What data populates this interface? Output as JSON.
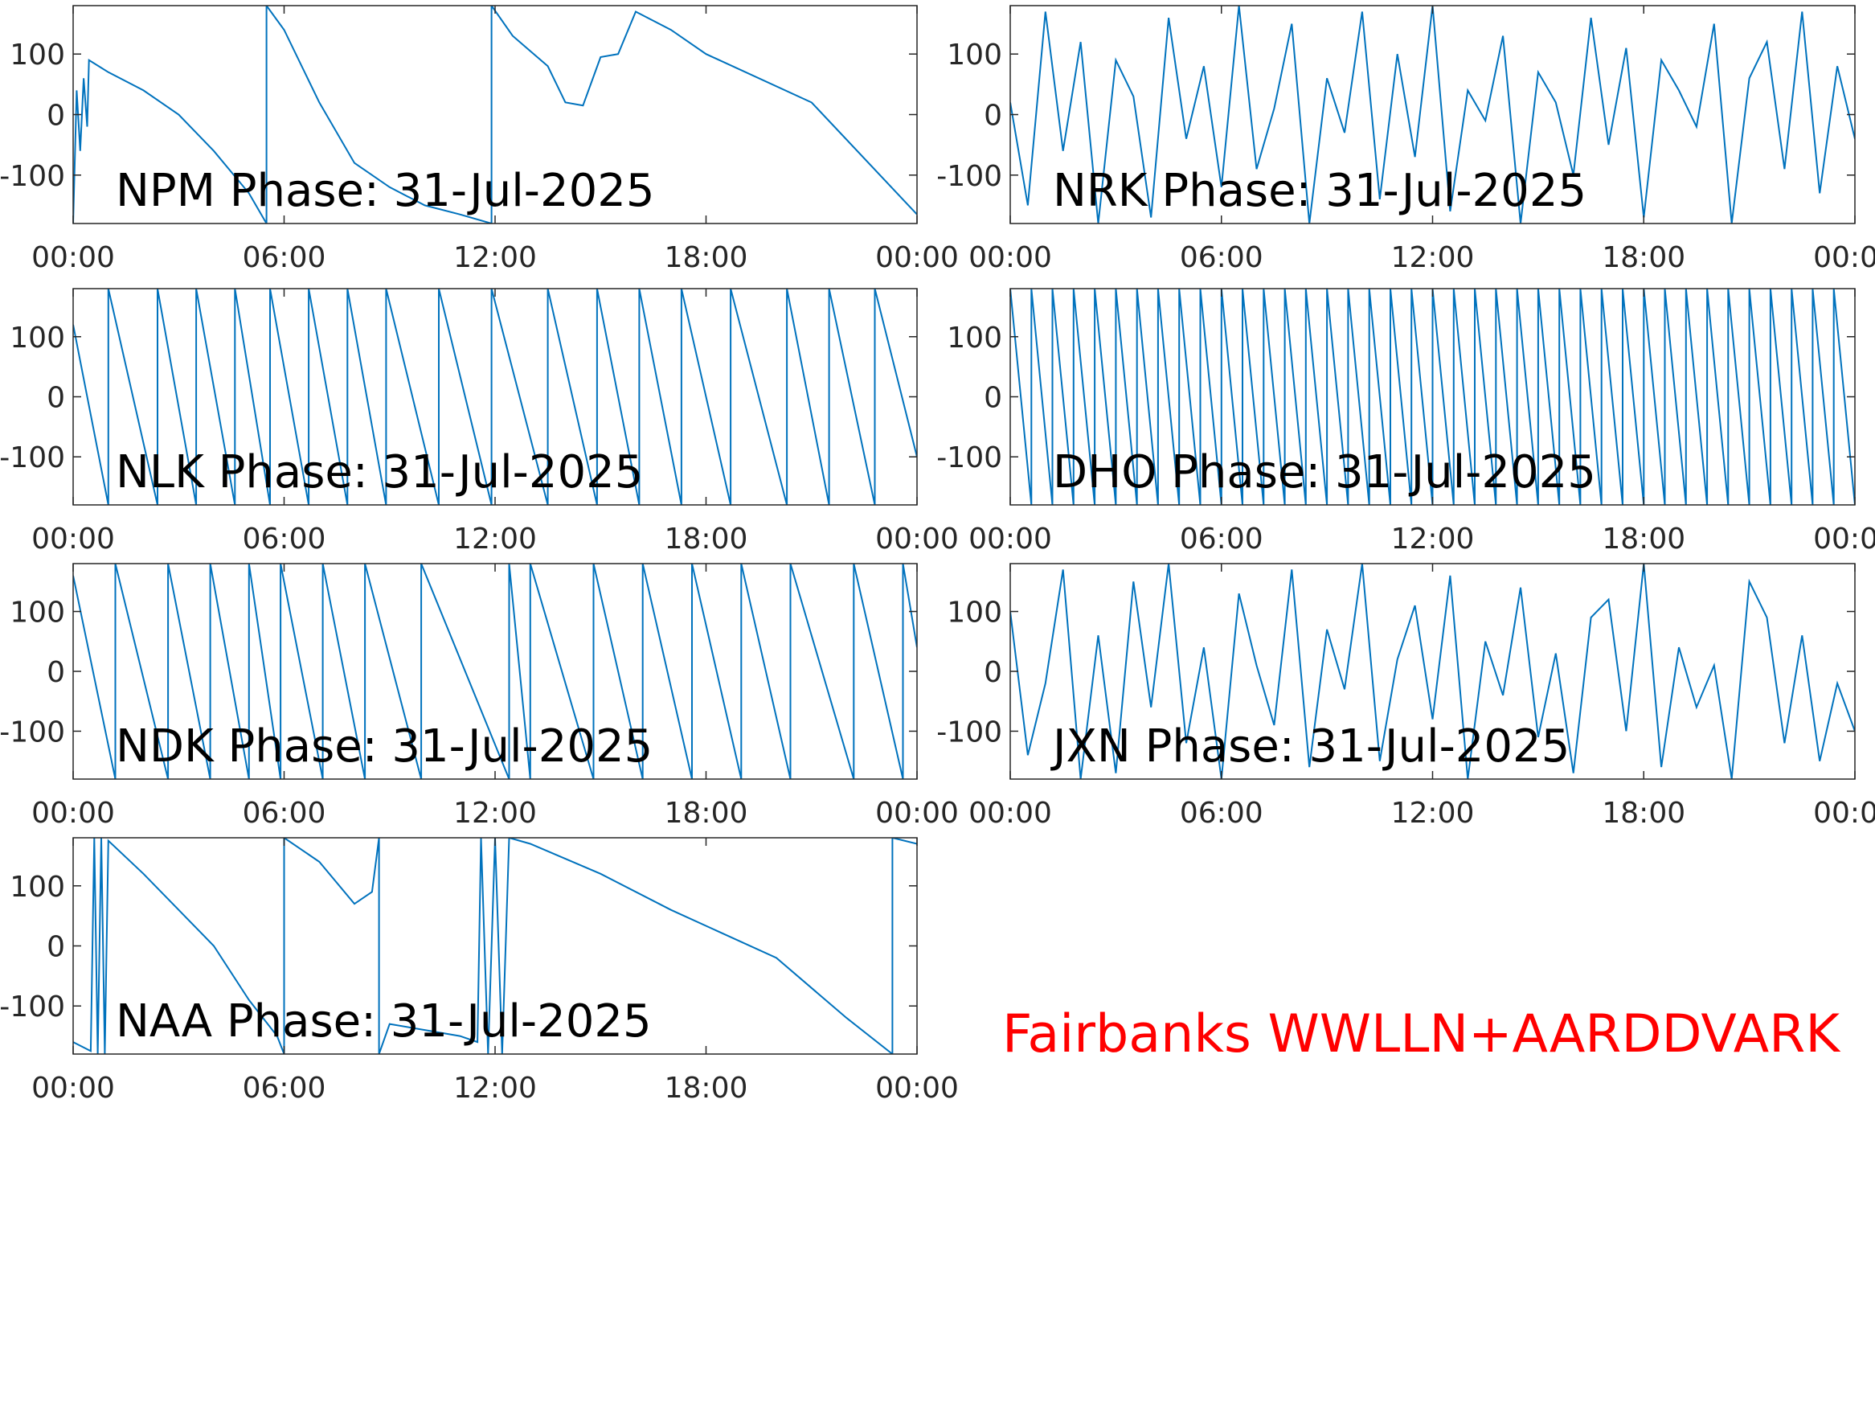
{
  "chart_data": [
    {
      "type": "line",
      "annotation": "NPM Phase: 31-Jul-2025",
      "color": "#0072bd",
      "x": [
        0,
        0.1,
        0.2,
        0.3,
        0.4,
        0.45,
        1,
        2,
        3,
        4,
        5,
        5.5,
        5.5,
        6,
        7,
        8,
        9,
        10,
        11,
        11.9,
        11.9,
        12.5,
        13,
        13.5,
        14,
        14.5,
        15,
        15.5,
        16,
        17,
        18,
        21,
        24
      ],
      "values": [
        -180,
        40,
        -60,
        60,
        -20,
        90,
        70,
        40,
        0,
        -60,
        -130,
        -180,
        180,
        140,
        20,
        -80,
        -120,
        -150,
        -165,
        -180,
        180,
        130,
        105,
        80,
        20,
        15,
        95,
        100,
        170,
        140,
        100,
        20,
        -165
      ],
      "xlim": [
        0,
        24
      ],
      "xticks": [
        {
          "value": 0,
          "label": "00:00"
        },
        {
          "value": 6,
          "label": "06:00"
        },
        {
          "value": 12,
          "label": "12:00"
        },
        {
          "value": 18,
          "label": "18:00"
        },
        {
          "value": 24,
          "label": "00:00"
        }
      ],
      "ylim": [
        -180,
        180
      ],
      "yticks": [
        -100,
        0,
        100
      ]
    },
    {
      "type": "line",
      "annotation": "NRK Phase: 31-Jul-2025",
      "color": "#0072bd",
      "x": [
        0,
        0.5,
        1,
        1.5,
        2,
        2.5,
        3,
        3.5,
        4,
        4.5,
        5,
        5.5,
        6,
        6.5,
        7,
        7.5,
        8,
        8.5,
        9,
        9.5,
        10,
        10.5,
        11,
        11.5,
        12,
        12.5,
        13,
        13.5,
        14,
        14.5,
        15,
        15.5,
        16,
        16.5,
        17,
        17.5,
        18,
        18.5,
        19,
        19.5,
        20,
        20.5,
        21,
        21.5,
        22,
        22.5,
        23,
        23.5,
        24
      ],
      "values": [
        20,
        -150,
        170,
        -60,
        120,
        -180,
        90,
        30,
        -170,
        160,
        -40,
        80,
        -120,
        180,
        -90,
        10,
        150,
        -180,
        60,
        -30,
        170,
        -140,
        100,
        -70,
        180,
        -160,
        40,
        -10,
        130,
        -180,
        70,
        20,
        -100,
        160,
        -50,
        110,
        -170,
        90,
        40,
        -20,
        150,
        -180,
        60,
        120,
        -90,
        170,
        -130,
        80,
        -40
      ],
      "xlim": [
        0,
        24
      ],
      "xticks": [
        {
          "value": 0,
          "label": "00:00"
        },
        {
          "value": 6,
          "label": "06:00"
        },
        {
          "value": 12,
          "label": "12:00"
        },
        {
          "value": 18,
          "label": "18:00"
        },
        {
          "value": 24,
          "label": "00:00"
        }
      ],
      "ylim": [
        -180,
        180
      ],
      "yticks": [
        -100,
        0,
        100
      ]
    },
    {
      "type": "line",
      "annotation": "NLK Phase: 31-Jul-2025",
      "color": "#0072bd",
      "x": [
        0,
        1.0,
        1.0,
        2.4,
        2.4,
        3.5,
        3.5,
        4.6,
        4.6,
        5.6,
        5.6,
        6.7,
        6.7,
        7.8,
        7.8,
        8.9,
        8.9,
        10.4,
        10.4,
        11.9,
        11.9,
        13.5,
        13.5,
        14.9,
        14.9,
        16.1,
        16.1,
        17.3,
        17.3,
        18.7,
        18.7,
        20.3,
        20.3,
        21.5,
        21.5,
        22.8,
        22.8,
        24
      ],
      "values": [
        120,
        -180,
        180,
        -180,
        180,
        -180,
        180,
        -180,
        180,
        -180,
        180,
        -180,
        180,
        -180,
        180,
        -180,
        180,
        -180,
        180,
        -180,
        180,
        -180,
        180,
        -180,
        180,
        -180,
        180,
        -180,
        180,
        -180,
        180,
        -180,
        180,
        -180,
        180,
        -180,
        180,
        -100
      ],
      "xlim": [
        0,
        24
      ],
      "xticks": [
        {
          "value": 0,
          "label": "00:00"
        },
        {
          "value": 6,
          "label": "06:00"
        },
        {
          "value": 12,
          "label": "12:00"
        },
        {
          "value": 18,
          "label": "18:00"
        },
        {
          "value": 24,
          "label": "00:00"
        }
      ],
      "ylim": [
        -180,
        180
      ],
      "yticks": [
        -100,
        0,
        100
      ]
    },
    {
      "type": "line",
      "annotation": "DHO Phase: 31-Jul-2025",
      "color": "#0072bd",
      "x": [
        0,
        0.6,
        0.6,
        1.2,
        1.2,
        1.8,
        1.8,
        2.4,
        2.4,
        3,
        3,
        3.6,
        3.6,
        4.2,
        4.2,
        4.8,
        4.8,
        5.4,
        5.4,
        6,
        6,
        6.6,
        6.6,
        7.2,
        7.2,
        7.8,
        7.8,
        8.4,
        8.4,
        9,
        9,
        9.6,
        9.6,
        10.2,
        10.2,
        10.8,
        10.8,
        11.4,
        11.4,
        12,
        12,
        12.6,
        12.6,
        13.2,
        13.2,
        13.8,
        13.8,
        14.4,
        14.4,
        15,
        15,
        15.6,
        15.6,
        16.2,
        16.2,
        16.8,
        16.8,
        17.4,
        17.4,
        18,
        18,
        18.6,
        18.6,
        19.2,
        19.2,
        19.8,
        19.8,
        20.4,
        20.4,
        21,
        21,
        21.6,
        21.6,
        22.2,
        22.2,
        22.8,
        22.8,
        23.4,
        23.4,
        24
      ],
      "values": [
        180,
        -180,
        180,
        -180,
        180,
        -180,
        180,
        -180,
        180,
        -180,
        180,
        -180,
        180,
        -180,
        180,
        -180,
        180,
        -180,
        180,
        -180,
        180,
        -180,
        180,
        -180,
        180,
        -180,
        180,
        -180,
        180,
        -180,
        180,
        -180,
        180,
        -180,
        180,
        -180,
        180,
        -180,
        180,
        -180,
        180,
        -180,
        180,
        -180,
        180,
        -180,
        180,
        -180,
        180,
        -180,
        180,
        -180,
        180,
        -180,
        180,
        -180,
        180,
        -180,
        180,
        -180,
        180,
        -180,
        180,
        -180,
        180,
        -180,
        180,
        -180,
        180,
        -180,
        180,
        -180,
        180,
        -180,
        180,
        -180,
        180,
        -180,
        180,
        -180
      ],
      "xlim": [
        0,
        24
      ],
      "xticks": [
        {
          "value": 0,
          "label": "00:00"
        },
        {
          "value": 6,
          "label": "06:00"
        },
        {
          "value": 12,
          "label": "12:00"
        },
        {
          "value": 18,
          "label": "18:00"
        },
        {
          "value": 24,
          "label": "00:00"
        }
      ],
      "ylim": [
        -180,
        180
      ],
      "yticks": [
        -100,
        0,
        100
      ]
    },
    {
      "type": "line",
      "annotation": "NDK Phase: 31-Jul-2025",
      "color": "#0072bd",
      "x": [
        0,
        1.2,
        1.2,
        2.7,
        2.7,
        3.9,
        3.9,
        5.0,
        5.0,
        5.9,
        5.9,
        7.1,
        7.1,
        8.3,
        8.3,
        9.9,
        9.9,
        12.4,
        12.4,
        13.0,
        13.0,
        14.8,
        14.8,
        16.2,
        16.2,
        17.6,
        17.6,
        19.0,
        19.0,
        20.4,
        20.4,
        22.2,
        22.2,
        23.6,
        23.6,
        24
      ],
      "values": [
        160,
        -180,
        180,
        -180,
        180,
        -180,
        180,
        -180,
        180,
        -180,
        180,
        -180,
        180,
        -180,
        180,
        -180,
        180,
        -180,
        180,
        -180,
        180,
        -180,
        180,
        -180,
        180,
        -180,
        180,
        -180,
        180,
        -180,
        180,
        -180,
        180,
        -180,
        180,
        40
      ],
      "xlim": [
        0,
        24
      ],
      "xticks": [
        {
          "value": 0,
          "label": "00:00"
        },
        {
          "value": 6,
          "label": "06:00"
        },
        {
          "value": 12,
          "label": "12:00"
        },
        {
          "value": 18,
          "label": "18:00"
        },
        {
          "value": 24,
          "label": "00:00"
        }
      ],
      "ylim": [
        -180,
        180
      ],
      "yticks": [
        -100,
        0,
        100
      ]
    },
    {
      "type": "line",
      "annotation": "JXN Phase: 31-Jul-2025",
      "color": "#0072bd",
      "x": [
        0,
        0.5,
        1,
        1.5,
        2,
        2.5,
        3,
        3.5,
        4,
        4.5,
        5,
        5.5,
        6,
        6.5,
        7,
        7.5,
        8,
        8.5,
        9,
        9.5,
        10,
        10.5,
        11,
        11.5,
        12,
        12.5,
        13,
        13.5,
        14,
        14.5,
        15,
        15.5,
        16,
        16.5,
        17,
        17.5,
        18,
        18.5,
        19,
        19.5,
        20,
        20.5,
        21,
        21.5,
        22,
        22.5,
        23,
        23.5,
        24
      ],
      "values": [
        100,
        -140,
        -20,
        170,
        -180,
        60,
        -170,
        150,
        -60,
        180,
        -120,
        40,
        -180,
        130,
        10,
        -90,
        170,
        -160,
        70,
        -30,
        180,
        -150,
        20,
        110,
        -80,
        160,
        -180,
        50,
        -40,
        140,
        -110,
        30,
        -170,
        90,
        120,
        -100,
        180,
        -160,
        40,
        -60,
        10,
        -180,
        150,
        90,
        -120,
        60,
        -150,
        -20,
        -100
      ],
      "xlim": [
        0,
        24
      ],
      "xticks": [
        {
          "value": 0,
          "label": "00:00"
        },
        {
          "value": 6,
          "label": "06:00"
        },
        {
          "value": 12,
          "label": "12:00"
        },
        {
          "value": 18,
          "label": "18:00"
        },
        {
          "value": 24,
          "label": "00:00"
        }
      ],
      "ylim": [
        -180,
        180
      ],
      "yticks": [
        -100,
        0,
        100
      ]
    },
    {
      "type": "line",
      "annotation": "NAA Phase: 31-Jul-2025",
      "color": "#0072bd",
      "x": [
        0,
        0.5,
        0.6,
        0.7,
        0.8,
        0.9,
        1,
        2,
        3,
        4,
        5,
        5.8,
        6,
        6,
        7,
        8,
        8.5,
        8.7,
        8.7,
        9,
        10,
        11,
        11.5,
        11.6,
        11.8,
        12,
        12.2,
        12.4,
        13,
        15,
        17,
        20,
        22,
        23.3,
        23.3,
        24
      ],
      "values": [
        -160,
        -175,
        180,
        -180,
        180,
        -180,
        175,
        120,
        60,
        0,
        -90,
        -150,
        -180,
        180,
        140,
        70,
        90,
        180,
        -180,
        -130,
        -140,
        -150,
        -160,
        180,
        -180,
        180,
        -180,
        180,
        170,
        120,
        60,
        -20,
        -120,
        -180,
        180,
        170
      ],
      "xlim": [
        0,
        24
      ],
      "xticks": [
        {
          "value": 0,
          "label": "00:00"
        },
        {
          "value": 6,
          "label": "06:00"
        },
        {
          "value": 12,
          "label": "12:00"
        },
        {
          "value": 18,
          "label": "18:00"
        },
        {
          "value": 24,
          "label": "00:00"
        }
      ],
      "ylim": [
        -180,
        180
      ],
      "yticks": [
        -100,
        0,
        100
      ]
    }
  ],
  "caption": "Fairbanks WWLLN+AARDDVARK"
}
